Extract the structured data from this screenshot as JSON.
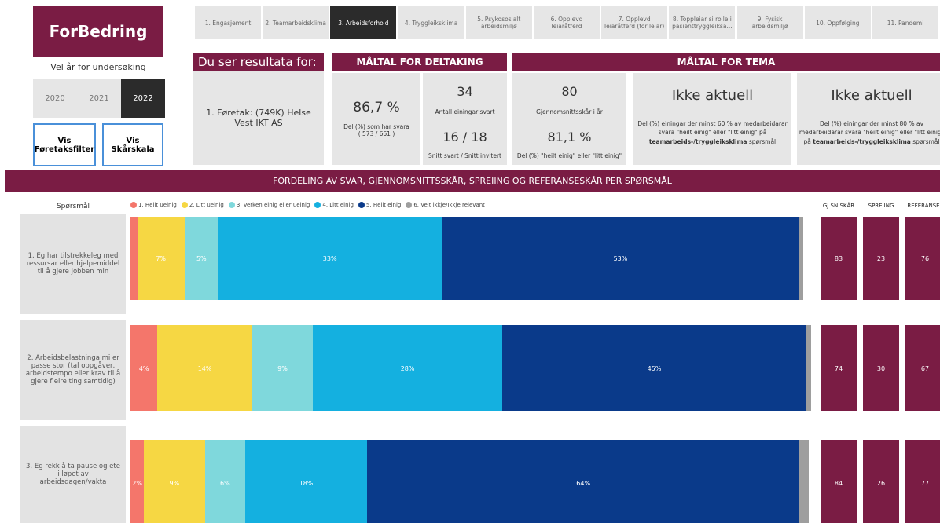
{
  "sidebar": {
    "logo": "ForBedring",
    "year_label": "Vel år for undersøking",
    "years": [
      "2020",
      "2021",
      "2022"
    ],
    "active_year": 2,
    "buttons": [
      "Vis Føretaksfilter",
      "Vis Skårskala"
    ]
  },
  "tabs": {
    "items": [
      "1. Engasjement",
      "2. Teamarbeidsklima",
      "3. Arbeidsforhold",
      "4. Tryggleiksklima",
      "5. Psykososialt arbeidsmiljø",
      "6. Opplevd leiaråtferd",
      "7. Opplevd leiaråtferd (for leiar)",
      "8. Toppleiar si rolle i pasienttryggleiksa...",
      "9. Fysisk arbeidsmiljø",
      "10. Oppfølging",
      "11. Pandemi"
    ],
    "active": 2
  },
  "selection": {
    "title": "Du ser resultata for:",
    "value": "1. Føretak: (749K) Helse Vest IKT AS"
  },
  "participation": {
    "title": "MÅLTAL FOR DELTAKING",
    "card1": {
      "value": "86,7 %",
      "label": "Del (%) som har svara",
      "sub": "( 573 / 661 )"
    },
    "card2": {
      "value": "34",
      "label": "Antall einingar svart",
      "value2": "16 / 18",
      "label2": "Snitt svart / Snitt invitert"
    }
  },
  "theme": {
    "title": "MÅLTAL FOR TEMA",
    "card1": {
      "value": "80",
      "label": "Gjennomsnittsskår i år",
      "value2": "81,1 %",
      "label2": "Del (%) \"heilt einig\" eller \"litt einig\""
    },
    "card2": {
      "value": "Ikke aktuell",
      "text": "Del (%) einingar der minst 60 % av medarbeidarar svara \"heilt einig\" eller \"litt einig\" på",
      "bold": "teamarbeids-/tryggleiksklima",
      "tail": "spørsmål"
    },
    "card3": {
      "value": "Ikke aktuell",
      "text": "Del (%) einingar der minst 80 % av medarbeidarar svara \"heilt einig\" eller \"litt einig\" på",
      "bold": "teamarbeids-/tryggleiksklima",
      "tail": "spørsmål"
    }
  },
  "distribution": {
    "title": "FORDELING AV SVAR, GJENNOMSNITTSSKÅR, SPREIING OG REFERANSESKÅR PER SPØRSMÅL",
    "question_header": "Spørsmål",
    "legend": [
      {
        "name": "1. Heilt ueinig",
        "color": "#f4766b"
      },
      {
        "name": "2. Litt ueinig",
        "color": "#f6d743"
      },
      {
        "name": "3. Verken einig eller ueinig",
        "color": "#7fd8dc"
      },
      {
        "name": "4. Litt einig",
        "color": "#14b0e0"
      },
      {
        "name": "5. Heilt einig",
        "color": "#0a3a8a"
      },
      {
        "name": "6. Veit ikkje/Ikkje relevant",
        "color": "#9e9e9e"
      }
    ],
    "columns": [
      "GJ.SN.SKÅR",
      "SPREIING",
      "REFERANSE"
    ],
    "questions": [
      {
        "text": "1. Eg har tilstrekkeleg med ressursar eller hjelpemiddel til å gjere jobben min",
        "values": [
          1,
          7,
          5,
          33,
          53,
          0.5
        ],
        "value_labels": [
          null,
          "7%",
          "5%",
          "33%",
          "53%",
          null
        ],
        "scores": [
          83,
          23,
          76
        ]
      },
      {
        "text": "2. Arbeidsbelastninga mi er passe stor (tal oppgåver, arbeidstempo eller krav til å gjere fleire ting samtidig)",
        "values": [
          4,
          14,
          9,
          28,
          45,
          0.7
        ],
        "value_labels": [
          "4%",
          "14%",
          "9%",
          "28%",
          "45%",
          null
        ],
        "scores": [
          74,
          30,
          67
        ]
      },
      {
        "text": "3. Eg rekk å ta pause og ete i løpet av arbeidsdagen/vakta",
        "values": [
          2,
          9,
          6,
          18,
          64,
          1.4
        ],
        "value_labels": [
          "2%",
          "9%",
          "6%",
          "18%",
          "64%",
          null
        ],
        "scores": [
          84,
          26,
          77
        ]
      }
    ]
  }
}
